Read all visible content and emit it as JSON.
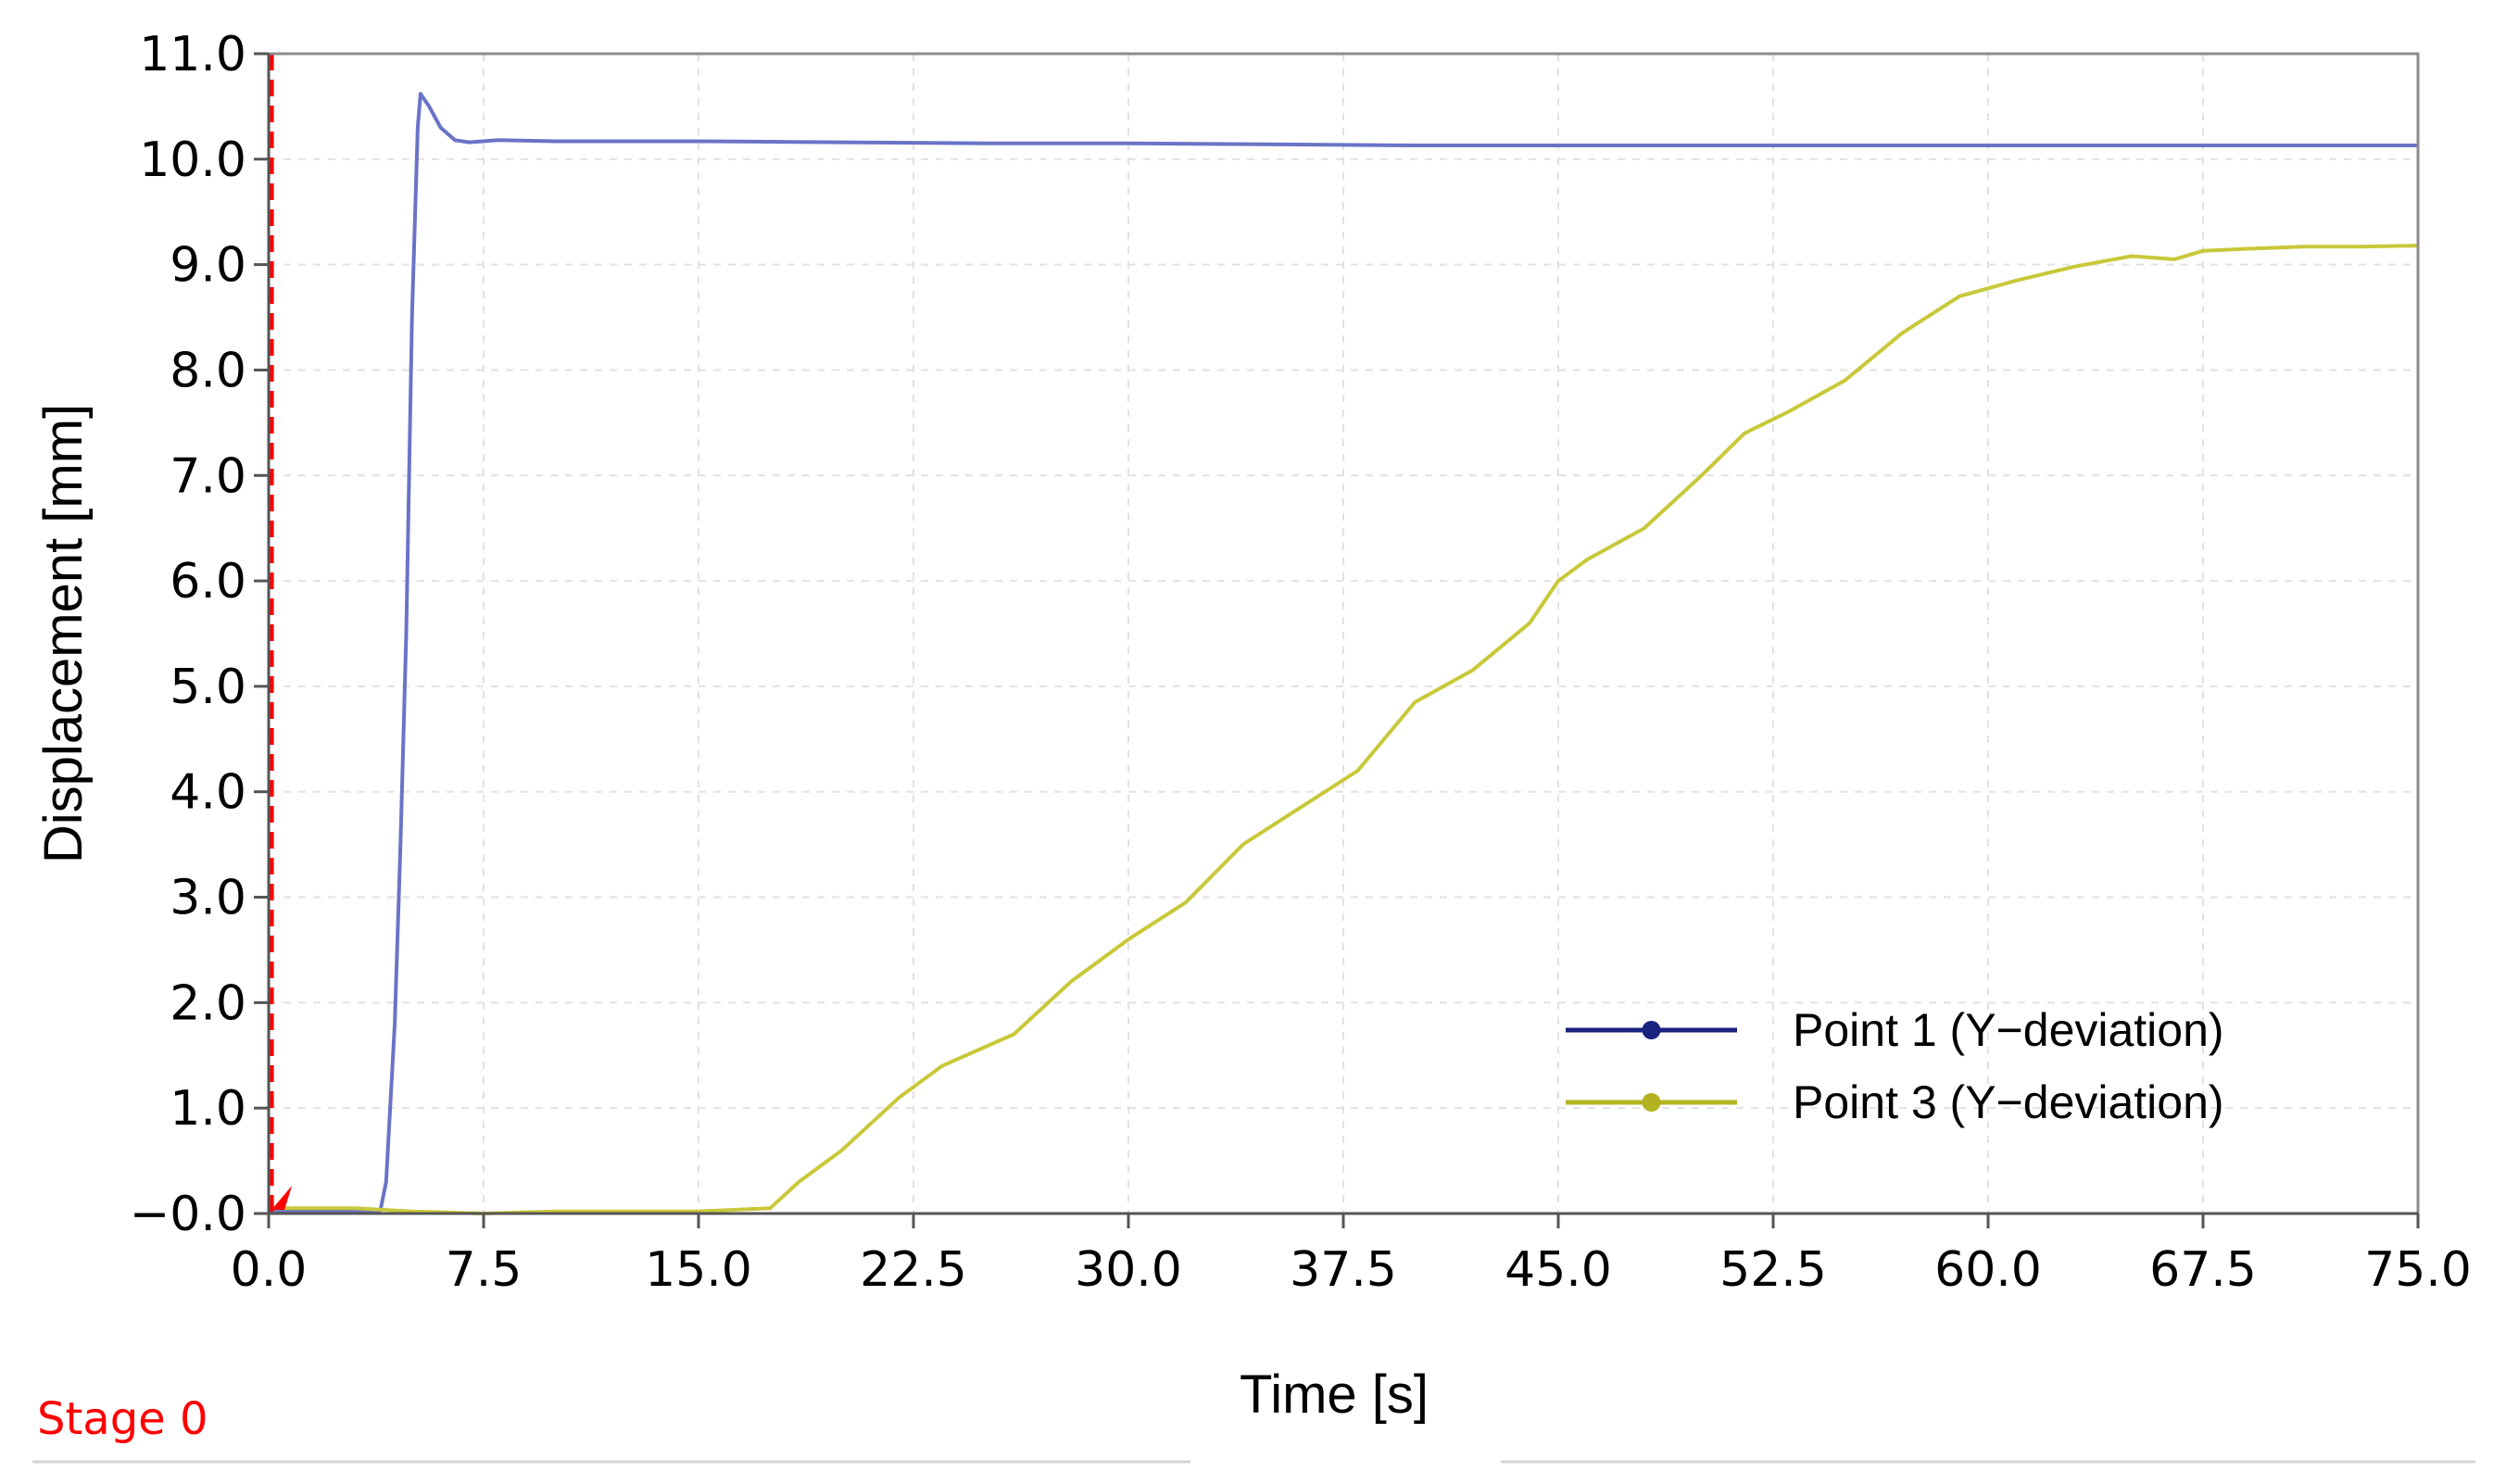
{
  "chart_data": {
    "type": "line",
    "xlabel": "Time [s]",
    "ylabel": "Displacement [mm]",
    "xlim": [
      0,
      75
    ],
    "ylim": [
      0,
      11
    ],
    "x_ticks": [
      "0.0",
      "7.5",
      "15.0",
      "22.5",
      "30.0",
      "37.5",
      "45.0",
      "52.5",
      "60.0",
      "67.5",
      "75.0"
    ],
    "y_ticks": [
      "−0.0",
      "1.0",
      "2.0",
      "3.0",
      "4.0",
      "5.0",
      "6.0",
      "7.0",
      "8.0",
      "9.0",
      "10.0",
      "11.0"
    ],
    "grid": true,
    "legend_position": "bottom-right",
    "stage_marker": {
      "x": 0.1,
      "label": "Stage 0",
      "color": "#ff0000"
    },
    "series": [
      {
        "name": "Point 1 (Y−deviation)",
        "color": "#6b73c7",
        "legend_color": "#1a237e",
        "x": [
          0,
          2,
          3.9,
          4.1,
          4.4,
          4.6,
          4.8,
          5.0,
          5.2,
          5.3,
          5.6,
          6.0,
          6.5,
          7.0,
          8,
          10,
          15,
          20,
          25,
          30,
          40,
          50,
          60,
          70,
          75
        ],
        "y": [
          0.02,
          0.02,
          0.03,
          0.3,
          1.8,
          3.5,
          5.5,
          8.5,
          10.3,
          10.62,
          10.5,
          10.3,
          10.18,
          10.16,
          10.18,
          10.17,
          10.17,
          10.16,
          10.15,
          10.15,
          10.13,
          10.13,
          10.13,
          10.13,
          10.13
        ]
      },
      {
        "name": "Point 3 (Y−deviation)",
        "color": "#c8c83a",
        "legend_color": "#b3b320",
        "x": [
          0,
          3,
          5,
          7.5,
          10,
          15,
          17.5,
          18.5,
          20,
          22,
          23.5,
          26,
          28,
          30,
          32,
          34,
          36,
          38,
          40,
          42,
          44,
          45,
          46,
          48,
          50,
          51.5,
          53,
          55,
          57,
          59,
          61,
          63,
          65,
          66.5,
          67.5,
          69,
          71,
          73,
          75
        ],
        "y": [
          0.05,
          0.05,
          0.02,
          0.0,
          0.02,
          0.02,
          0.05,
          0.3,
          0.6,
          1.1,
          1.4,
          1.7,
          2.2,
          2.6,
          2.95,
          3.5,
          3.85,
          4.2,
          4.85,
          5.15,
          5.6,
          6.0,
          6.2,
          6.5,
          7.0,
          7.4,
          7.6,
          7.9,
          8.35,
          8.7,
          8.85,
          8.98,
          9.08,
          9.05,
          9.13,
          9.15,
          9.17,
          9.17,
          9.18
        ]
      }
    ]
  }
}
